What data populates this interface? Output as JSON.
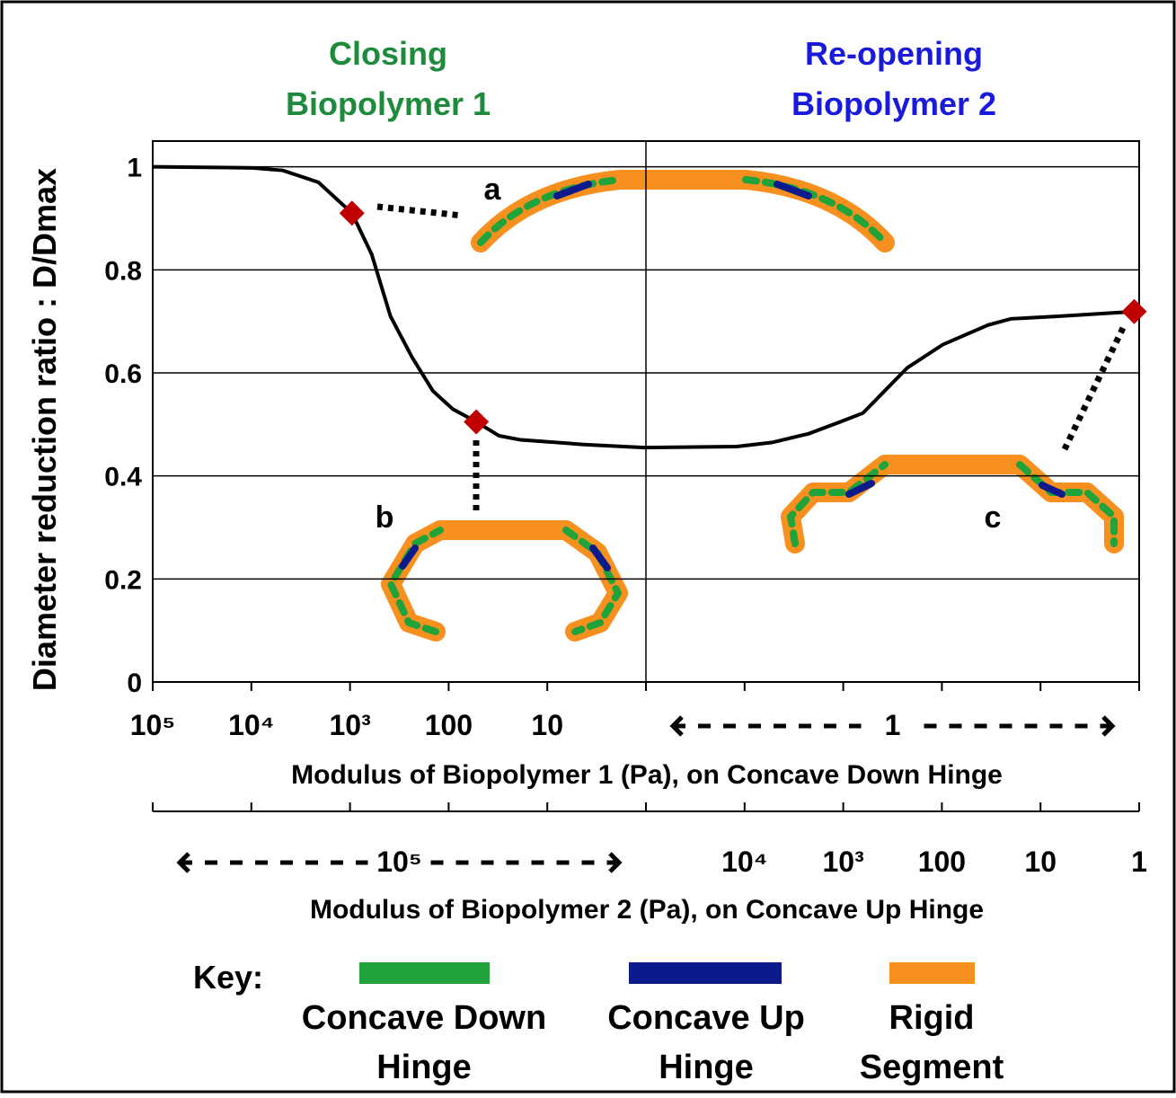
{
  "chart_data": {
    "type": "line",
    "titles": [
      {
        "lines": [
          "Closing",
          "Biopolymer 1"
        ],
        "color": "#1e8a3c"
      },
      {
        "lines": [
          "Re-opening",
          "Biopolymer 2"
        ],
        "color": "#1a1adc"
      }
    ],
    "y_label": "Diameter reduction ratio : D/Dmax",
    "x_label": "Modulus of Biopolymer 1 (Pa), on Concave Down Hinge",
    "x2_label": "Modulus of Biopolymer 2 (Pa), on Concave Up Hinge",
    "xlim": [
      0,
      10
    ],
    "ylim": [
      0,
      1.05
    ],
    "yticks": [
      0,
      0.2,
      0.4,
      0.6,
      0.8,
      1
    ],
    "grid": true,
    "vline": 5,
    "xticks": [
      {
        "value": 0,
        "label": "10⁵"
      },
      {
        "value": 1,
        "label": "10⁴"
      },
      {
        "value": 2,
        "label": "10³"
      },
      {
        "value": 3,
        "label": "100"
      },
      {
        "value": 4,
        "label": "10"
      },
      {
        "value": 5,
        "label": null
      },
      {
        "value": 6,
        "label": null
      },
      {
        "value": 7,
        "label": null
      },
      {
        "value": 8,
        "label": null
      },
      {
        "value": 9,
        "label": null
      },
      {
        "value": 10,
        "label": null
      }
    ],
    "x_span": {
      "from": 5,
      "to": 10,
      "label": "1"
    },
    "x2ticks": [
      {
        "value": 0,
        "label": null
      },
      {
        "value": 1,
        "label": null
      },
      {
        "value": 2,
        "label": null
      },
      {
        "value": 3,
        "label": null
      },
      {
        "value": 4,
        "label": null
      },
      {
        "value": 5,
        "label": null
      },
      {
        "value": 6,
        "label": "10⁴"
      },
      {
        "value": 7,
        "label": "10³"
      },
      {
        "value": 8,
        "label": "100"
      },
      {
        "value": 9,
        "label": "10"
      },
      {
        "value": 10,
        "label": "1"
      }
    ],
    "x2_span": {
      "from": 0,
      "to": 5,
      "label": "10⁵"
    },
    "series": [
      {
        "color": "#000000",
        "x": [
          0,
          1,
          1.32,
          1.68,
          2.02,
          2.22,
          2.41,
          2.63,
          2.84,
          3.04,
          3.28,
          3.51,
          3.73,
          4.37,
          4.98,
          5.92,
          6.28,
          6.65,
          6.97,
          7.2,
          7.42,
          7.65,
          8.01,
          8.47,
          8.7,
          9.2,
          9.95
        ],
        "values": [
          1.0,
          0.998,
          0.993,
          0.97,
          0.91,
          0.83,
          0.71,
          0.63,
          0.565,
          0.53,
          0.505,
          0.478,
          0.47,
          0.461,
          0.455,
          0.457,
          0.465,
          0.482,
          0.505,
          0.522,
          0.565,
          0.61,
          0.655,
          0.693,
          0.705,
          0.71,
          0.719
        ]
      }
    ],
    "markers": {
      "color": "#c00000",
      "x": [
        2.02,
        3.28,
        9.95
      ],
      "values": [
        0.91,
        0.505,
        0.719
      ],
      "labels": [
        "a",
        "b",
        "c"
      ]
    },
    "key": {
      "title": "Key:",
      "items": [
        {
          "lines": [
            "Concave Down",
            "Hinge"
          ],
          "color": "#1fa33a"
        },
        {
          "lines": [
            "Concave Up",
            "Hinge"
          ],
          "color": "#0d1a8c"
        },
        {
          "lines": [
            "Rigid",
            "Segment"
          ],
          "color": "#f7901e"
        }
      ]
    }
  }
}
